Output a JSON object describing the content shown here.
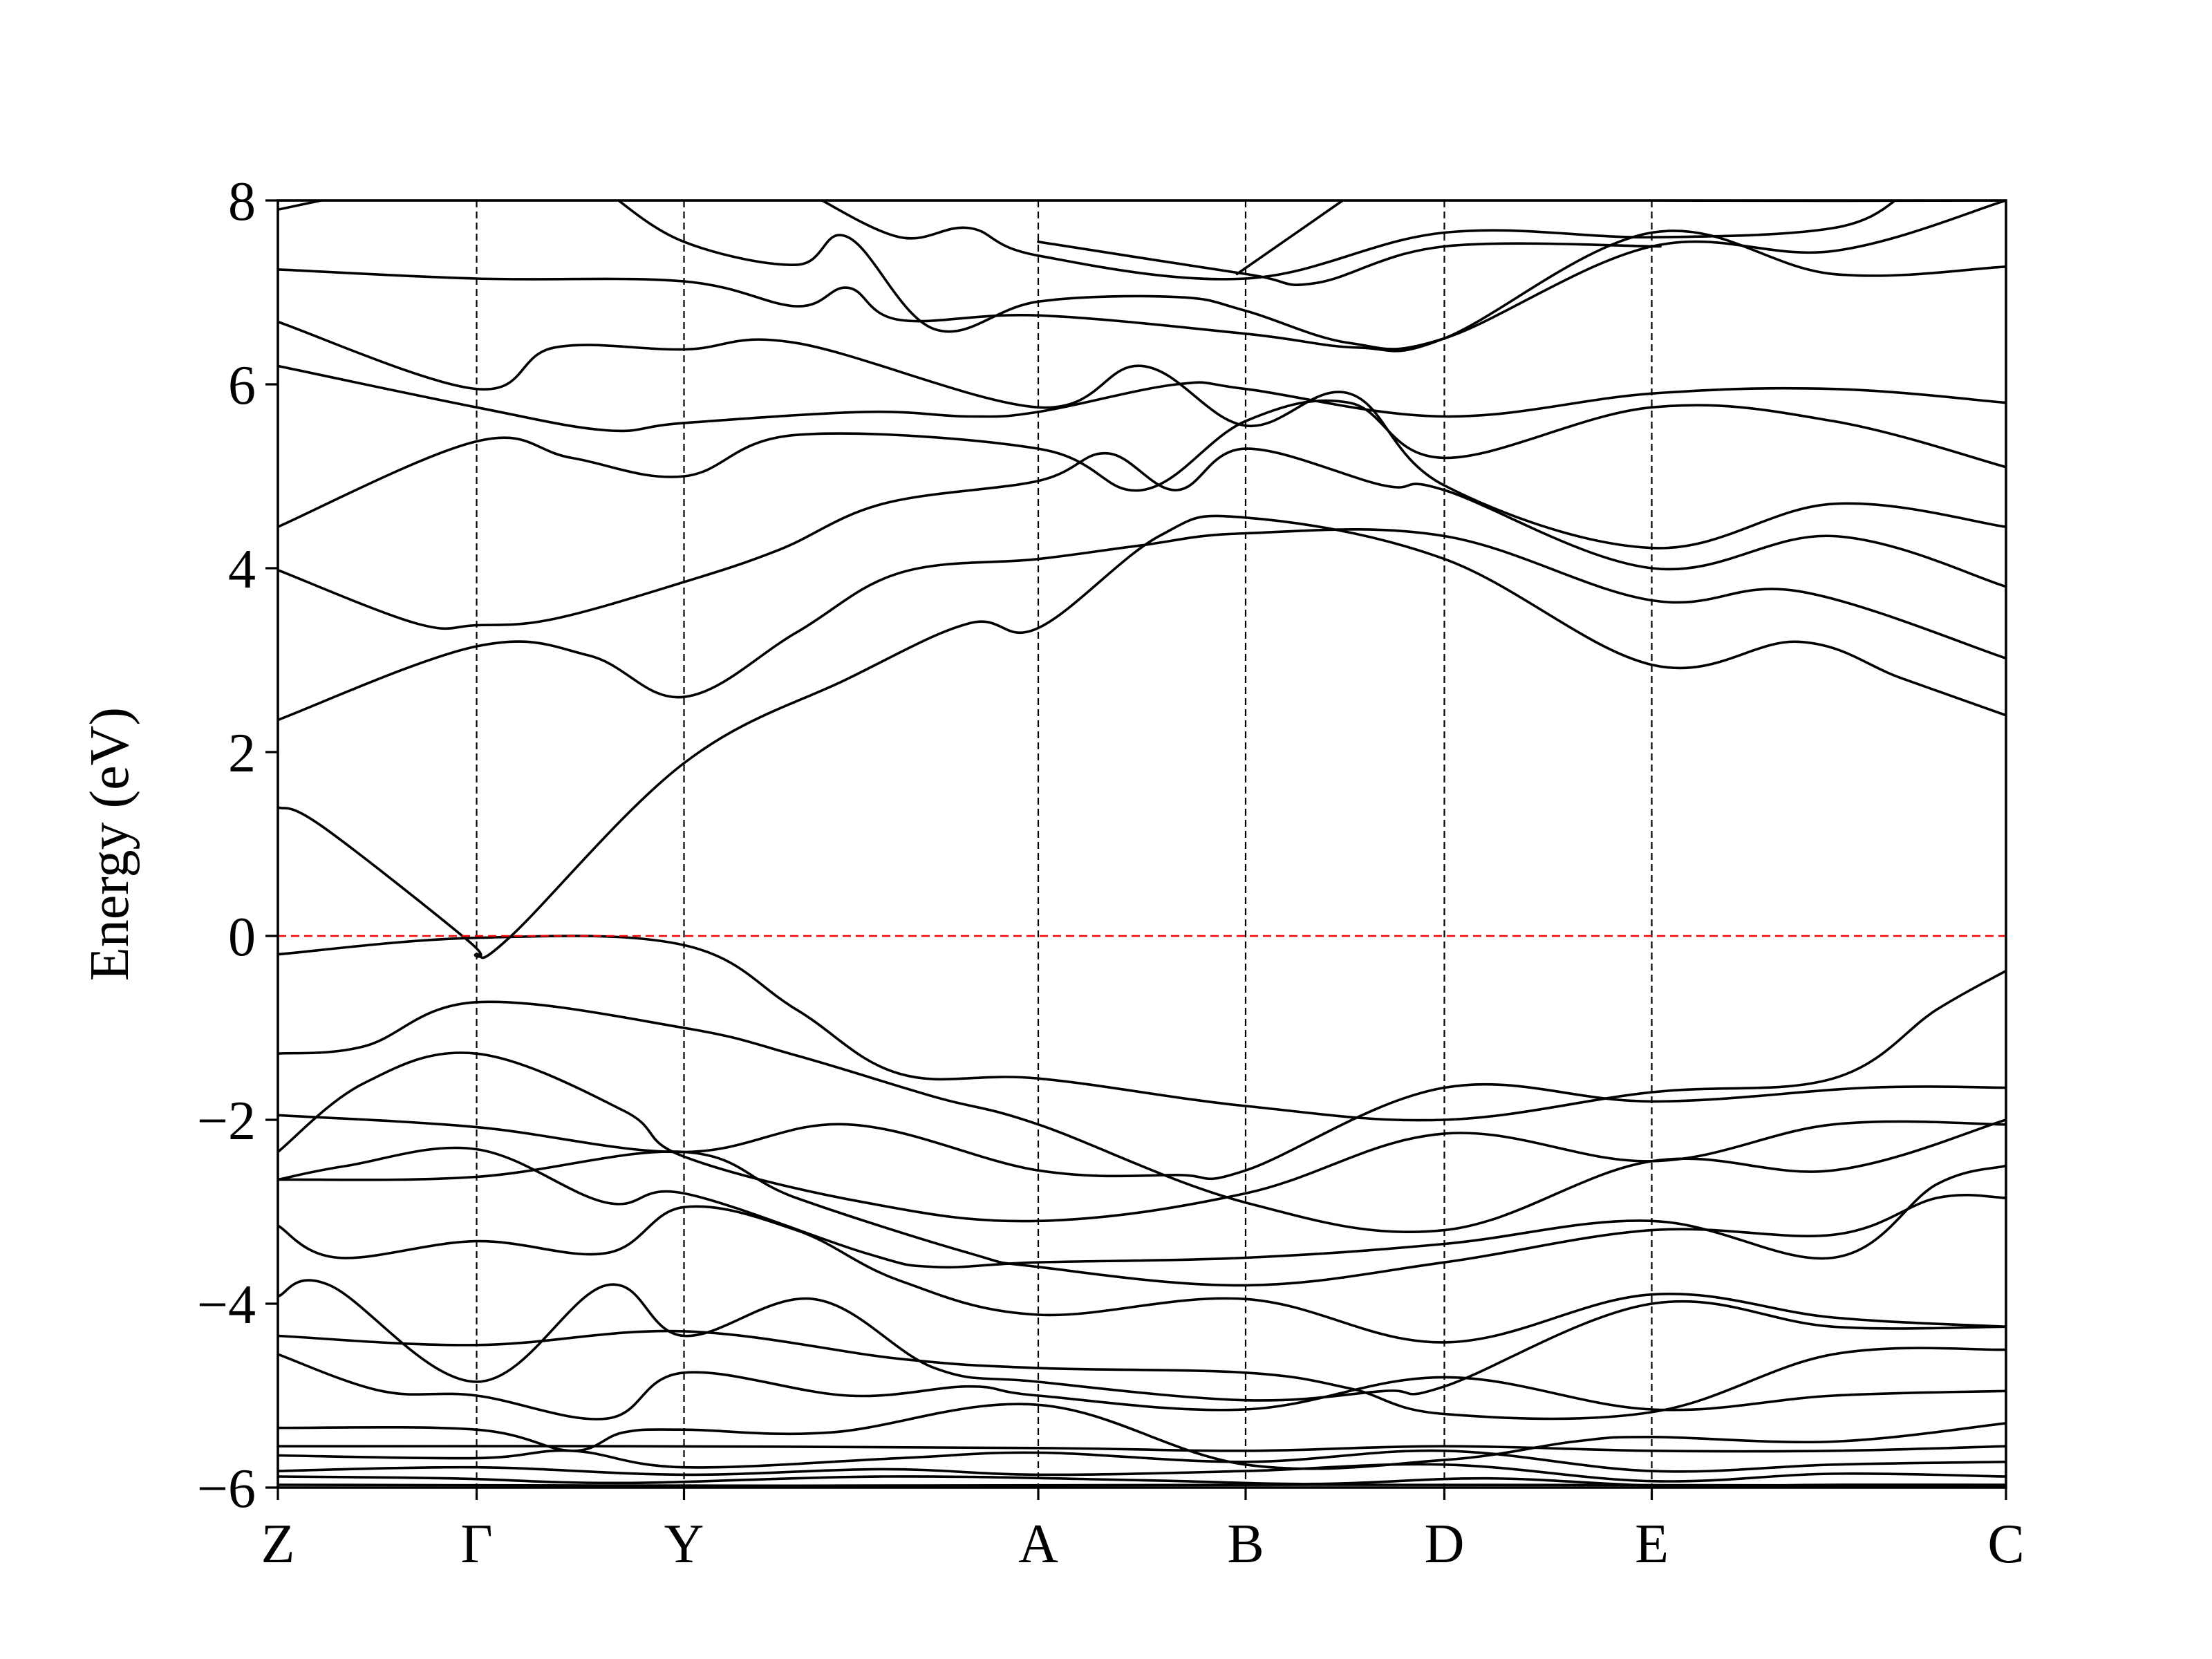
{
  "chart_data": {
    "type": "line",
    "title": "",
    "xlabel": "",
    "ylabel": "Energy (eV)",
    "ylim": [
      -6,
      8
    ],
    "yticks": [
      -6,
      -4,
      -2,
      0,
      2,
      4,
      6,
      8
    ],
    "ytick_labels": [
      "−6",
      "−4",
      "−2",
      "0",
      "2",
      "4",
      "6",
      "8"
    ],
    "xlim": [
      0,
      1
    ],
    "kpoints": [
      {
        "label": "Z",
        "x": 0.0
      },
      {
        "label": "Γ",
        "x": 0.115
      },
      {
        "label": "Y",
        "x": 0.235
      },
      {
        "label": "A",
        "x": 0.44
      },
      {
        "label": "B",
        "x": 0.56
      },
      {
        "label": "D",
        "x": 0.675
      },
      {
        "label": "E",
        "x": 0.795
      },
      {
        "label": "C",
        "x": 1.0
      }
    ],
    "grid": false,
    "fermi_level": 0,
    "colors": {
      "bands": "#000000",
      "fermi": "#ff0000",
      "kpath_lines": "#000000"
    },
    "bands": [
      [
        [
          0,
          -5.97
        ],
        [
          0.3,
          -5.98
        ],
        [
          0.6,
          -5.97
        ],
        [
          1,
          -5.98
        ]
      ],
      [
        [
          0,
          -5.88
        ],
        [
          0.1,
          -5.9
        ],
        [
          0.2,
          -5.95
        ],
        [
          0.35,
          -5.88
        ],
        [
          0.5,
          -5.92
        ],
        [
          0.6,
          -5.96
        ],
        [
          0.7,
          -5.9
        ],
        [
          0.8,
          -5.98
        ],
        [
          0.9,
          -5.97
        ],
        [
          1,
          -5.97
        ]
      ],
      [
        [
          0,
          -5.82
        ],
        [
          0.115,
          -5.78
        ],
        [
          0.235,
          -5.86
        ],
        [
          0.35,
          -5.8
        ],
        [
          0.44,
          -5.86
        ],
        [
          0.56,
          -5.82
        ],
        [
          0.675,
          -5.75
        ],
        [
          0.795,
          -5.93
        ],
        [
          0.9,
          -5.85
        ],
        [
          1,
          -5.88
        ]
      ],
      [
        [
          0,
          -5.65
        ],
        [
          0.115,
          -5.68
        ],
        [
          0.17,
          -5.6
        ],
        [
          0.235,
          -5.78
        ],
        [
          0.36,
          -5.68
        ],
        [
          0.44,
          -5.62
        ],
        [
          0.56,
          -5.72
        ],
        [
          0.675,
          -5.6
        ],
        [
          0.795,
          -5.82
        ],
        [
          0.9,
          -5.75
        ],
        [
          1,
          -5.72
        ]
      ],
      [
        [
          0,
          -5.55
        ],
        [
          0.2,
          -5.55
        ],
        [
          0.44,
          -5.57
        ],
        [
          0.56,
          -5.6
        ],
        [
          0.675,
          -5.55
        ],
        [
          0.795,
          -5.6
        ],
        [
          0.9,
          -5.6
        ],
        [
          1,
          -5.55
        ]
      ],
      [
        [
          0,
          -5.35
        ],
        [
          0.115,
          -5.37
        ],
        [
          0.17,
          -5.6
        ],
        [
          0.2,
          -5.4
        ],
        [
          0.235,
          -5.37
        ],
        [
          0.32,
          -5.4
        ],
        [
          0.44,
          -5.1
        ],
        [
          0.56,
          -5.75
        ],
        [
          0.675,
          -5.7
        ],
        [
          0.75,
          -5.5
        ],
        [
          0.795,
          -5.45
        ],
        [
          0.9,
          -5.5
        ],
        [
          1,
          -5.3
        ]
      ],
      [
        [
          0,
          -4.55
        ],
        [
          0.06,
          -4.95
        ],
        [
          0.115,
          -5.0
        ],
        [
          0.19,
          -5.25
        ],
        [
          0.235,
          -4.75
        ],
        [
          0.33,
          -5.0
        ],
        [
          0.4,
          -4.9
        ],
        [
          0.44,
          -5.0
        ],
        [
          0.56,
          -5.15
        ],
        [
          0.675,
          -4.8
        ],
        [
          0.795,
          -5.15
        ],
        [
          0.9,
          -5.0
        ],
        [
          1,
          -4.95
        ]
      ],
      [
        [
          0,
          -4.35
        ],
        [
          0.115,
          -4.45
        ],
        [
          0.235,
          -4.3
        ],
        [
          0.36,
          -4.6
        ],
        [
          0.44,
          -4.7
        ],
        [
          0.56,
          -4.75
        ],
        [
          0.62,
          -4.92
        ],
        [
          0.675,
          -5.2
        ],
        [
          0.795,
          -5.18
        ],
        [
          0.9,
          -4.55
        ],
        [
          1,
          -4.5
        ]
      ],
      [
        [
          0,
          -3.92
        ],
        [
          0.03,
          -3.8
        ],
        [
          0.115,
          -4.85
        ],
        [
          0.19,
          -3.8
        ],
        [
          0.235,
          -4.35
        ],
        [
          0.31,
          -3.95
        ],
        [
          0.38,
          -4.7
        ],
        [
          0.44,
          -4.85
        ],
        [
          0.56,
          -5.05
        ],
        [
          0.64,
          -4.95
        ],
        [
          0.675,
          -4.9
        ],
        [
          0.795,
          -4.0
        ],
        [
          0.9,
          -4.25
        ],
        [
          1,
          -4.25
        ]
      ],
      [
        [
          0,
          -3.15
        ],
        [
          0.035,
          -3.5
        ],
        [
          0.115,
          -3.32
        ],
        [
          0.19,
          -3.45
        ],
        [
          0.235,
          -2.95
        ],
        [
          0.3,
          -3.2
        ],
        [
          0.36,
          -3.75
        ],
        [
          0.44,
          -4.12
        ],
        [
          0.56,
          -3.95
        ],
        [
          0.675,
          -4.42
        ],
        [
          0.795,
          -3.9
        ],
        [
          0.9,
          -4.15
        ],
        [
          1,
          -4.25
        ]
      ],
      [
        [
          0,
          -2.65
        ],
        [
          0.115,
          -2.62
        ],
        [
          0.235,
          -2.35
        ],
        [
          0.3,
          -2.85
        ],
        [
          0.4,
          -3.45
        ],
        [
          0.44,
          -3.6
        ],
        [
          0.56,
          -3.8
        ],
        [
          0.675,
          -3.55
        ],
        [
          0.795,
          -3.2
        ],
        [
          0.9,
          -3.25
        ],
        [
          0.96,
          -2.85
        ],
        [
          1,
          -2.85
        ]
      ],
      [
        [
          0,
          -2.65
        ],
        [
          0.04,
          -2.5
        ],
        [
          0.115,
          -2.32
        ],
        [
          0.19,
          -2.9
        ],
        [
          0.235,
          -2.8
        ],
        [
          0.34,
          -3.45
        ],
        [
          0.38,
          -3.6
        ],
        [
          0.44,
          -3.55
        ],
        [
          0.56,
          -3.5
        ],
        [
          0.675,
          -3.35
        ],
        [
          0.795,
          -3.1
        ],
        [
          0.9,
          -3.5
        ],
        [
          0.96,
          -2.7
        ],
        [
          1,
          -2.5
        ]
      ],
      [
        [
          0,
          -2.35
        ],
        [
          0.05,
          -1.6
        ],
        [
          0.115,
          -1.28
        ],
        [
          0.2,
          -1.9
        ],
        [
          0.235,
          -2.4
        ],
        [
          0.34,
          -2.9
        ],
        [
          0.44,
          -3.1
        ],
        [
          0.56,
          -2.8
        ],
        [
          0.675,
          -2.15
        ],
        [
          0.795,
          -2.45
        ],
        [
          0.9,
          -2.05
        ],
        [
          1,
          -2.05
        ]
      ],
      [
        [
          0,
          -1.95
        ],
        [
          0.115,
          -2.08
        ],
        [
          0.235,
          -2.35
        ],
        [
          0.33,
          -2.05
        ],
        [
          0.44,
          -2.55
        ],
        [
          0.52,
          -2.6
        ],
        [
          0.56,
          -2.55
        ],
        [
          0.675,
          -1.65
        ],
        [
          0.795,
          -1.8
        ],
        [
          0.92,
          -1.65
        ],
        [
          1,
          -1.65
        ]
      ],
      [
        [
          0,
          -1.28
        ],
        [
          0.05,
          -1.2
        ],
        [
          0.115,
          -0.72
        ],
        [
          0.235,
          -1.0
        ],
        [
          0.3,
          -1.3
        ],
        [
          0.38,
          -1.75
        ],
        [
          0.44,
          -2.05
        ],
        [
          0.56,
          -2.9
        ],
        [
          0.675,
          -3.2
        ],
        [
          0.795,
          -2.45
        ],
        [
          0.9,
          -2.55
        ],
        [
          1,
          -2.0
        ]
      ],
      [
        [
          0,
          -0.2
        ],
        [
          0.115,
          -0.02
        ],
        [
          0.235,
          -0.1
        ],
        [
          0.3,
          -0.8
        ],
        [
          0.36,
          -1.5
        ],
        [
          0.44,
          -1.55
        ],
        [
          0.56,
          -1.85
        ],
        [
          0.675,
          -2.0
        ],
        [
          0.795,
          -1.7
        ],
        [
          0.9,
          -1.55
        ],
        [
          0.96,
          -0.8
        ],
        [
          1,
          -0.38
        ]
      ],
      [
        [
          0,
          1.4
        ],
        [
          0.025,
          1.2
        ],
        [
          0.11,
          -0.05
        ],
        [
          0.115,
          -0.2
        ],
        [
          0.135,
          0.0
        ],
        [
          0.235,
          1.88
        ],
        [
          0.33,
          2.8
        ],
        [
          0.4,
          3.4
        ],
        [
          0.44,
          3.35
        ],
        [
          0.51,
          4.35
        ],
        [
          0.56,
          4.55
        ],
        [
          0.675,
          4.1
        ],
        [
          0.795,
          2.95
        ],
        [
          0.88,
          3.2
        ],
        [
          0.94,
          2.8
        ],
        [
          1,
          2.4
        ]
      ],
      [
        [
          0,
          2.35
        ],
        [
          0.115,
          3.15
        ],
        [
          0.18,
          3.05
        ],
        [
          0.235,
          2.6
        ],
        [
          0.3,
          3.3
        ],
        [
          0.36,
          3.95
        ],
        [
          0.44,
          4.1
        ],
        [
          0.5,
          4.25
        ],
        [
          0.56,
          4.38
        ],
        [
          0.675,
          4.35
        ],
        [
          0.795,
          3.65
        ],
        [
          0.88,
          3.75
        ],
        [
          1,
          3.02
        ]
      ],
      [
        [
          0,
          3.98
        ],
        [
          0.08,
          3.4
        ],
        [
          0.115,
          3.38
        ],
        [
          0.16,
          3.45
        ],
        [
          0.235,
          3.85
        ],
        [
          0.29,
          4.2
        ],
        [
          0.35,
          4.7
        ],
        [
          0.44,
          4.95
        ],
        [
          0.48,
          5.25
        ],
        [
          0.52,
          4.85
        ],
        [
          0.56,
          5.3
        ],
        [
          0.64,
          4.9
        ],
        [
          0.675,
          4.85
        ],
        [
          0.795,
          4.0
        ],
        [
          0.9,
          4.35
        ],
        [
          1,
          3.8
        ]
      ],
      [
        [
          0,
          4.45
        ],
        [
          0.115,
          5.38
        ],
        [
          0.17,
          5.2
        ],
        [
          0.235,
          5.0
        ],
        [
          0.3,
          5.45
        ],
        [
          0.44,
          5.3
        ],
        [
          0.5,
          4.85
        ],
        [
          0.56,
          5.6
        ],
        [
          0.62,
          5.8
        ],
        [
          0.675,
          5.2
        ],
        [
          0.795,
          5.75
        ],
        [
          0.9,
          5.6
        ],
        [
          1,
          5.1
        ]
      ],
      [
        [
          0,
          6.2
        ],
        [
          0.115,
          5.75
        ],
        [
          0.19,
          5.5
        ],
        [
          0.235,
          5.58
        ],
        [
          0.34,
          5.7
        ],
        [
          0.4,
          5.65
        ],
        [
          0.44,
          5.7
        ],
        [
          0.52,
          6.0
        ],
        [
          0.56,
          5.95
        ],
        [
          0.675,
          5.65
        ],
        [
          0.795,
          5.9
        ],
        [
          0.9,
          5.95
        ],
        [
          1,
          5.8
        ]
      ],
      [
        [
          0,
          6.68
        ],
        [
          0.115,
          5.95
        ],
        [
          0.16,
          6.4
        ],
        [
          0.235,
          6.38
        ],
        [
          0.3,
          6.45
        ],
        [
          0.44,
          5.75
        ],
        [
          0.5,
          6.2
        ],
        [
          0.56,
          5.55
        ],
        [
          0.62,
          5.9
        ],
        [
          0.675,
          4.9
        ],
        [
          0.795,
          4.22
        ],
        [
          0.9,
          4.7
        ],
        [
          1,
          4.45
        ]
      ],
      [
        [
          0,
          7.25
        ],
        [
          0.115,
          7.15
        ],
        [
          0.235,
          7.12
        ],
        [
          0.3,
          6.85
        ],
        [
          0.33,
          7.05
        ],
        [
          0.36,
          6.7
        ],
        [
          0.44,
          6.75
        ],
        [
          0.56,
          6.55
        ],
        [
          0.625,
          6.4
        ],
        [
          0.675,
          6.5
        ],
        [
          0.795,
          7.65
        ],
        [
          0.9,
          7.2
        ],
        [
          1,
          7.28
        ]
      ],
      [
        [
          0,
          7.9
        ],
        [
          0.05,
          8.1
        ]
      ],
      [
        [
          0.19,
          8.1
        ],
        [
          0.235,
          7.55
        ],
        [
          0.3,
          7.3
        ],
        [
          0.33,
          7.6
        ],
        [
          0.38,
          6.6
        ],
        [
          0.44,
          6.9
        ],
        [
          0.52,
          6.95
        ],
        [
          0.56,
          6.8
        ],
        [
          0.62,
          6.45
        ],
        [
          0.675,
          6.5
        ],
        [
          0.795,
          7.5
        ],
        [
          0.9,
          7.45
        ],
        [
          1,
          8.0
        ]
      ],
      [
        [
          0.31,
          8.05
        ],
        [
          0.36,
          7.6
        ],
        [
          0.4,
          7.7
        ],
        [
          0.44,
          7.4
        ],
        [
          0.56,
          7.15
        ],
        [
          0.675,
          7.65
        ],
        [
          0.795,
          7.6
        ],
        [
          0.9,
          7.7
        ],
        [
          0.94,
          8.05
        ]
      ],
      [
        [
          0.44,
          7.55
        ],
        [
          0.56,
          7.2
        ],
        [
          0.6,
          7.1
        ],
        [
          0.675,
          7.5
        ],
        [
          0.8,
          7.5
        ]
      ],
      [
        [
          0.555,
          7.2
        ],
        [
          0.62,
          8.05
        ]
      ],
      [
        [
          0.74,
          8.05
        ],
        [
          0.8,
          8.0
        ],
        [
          1,
          8.0
        ]
      ]
    ]
  }
}
